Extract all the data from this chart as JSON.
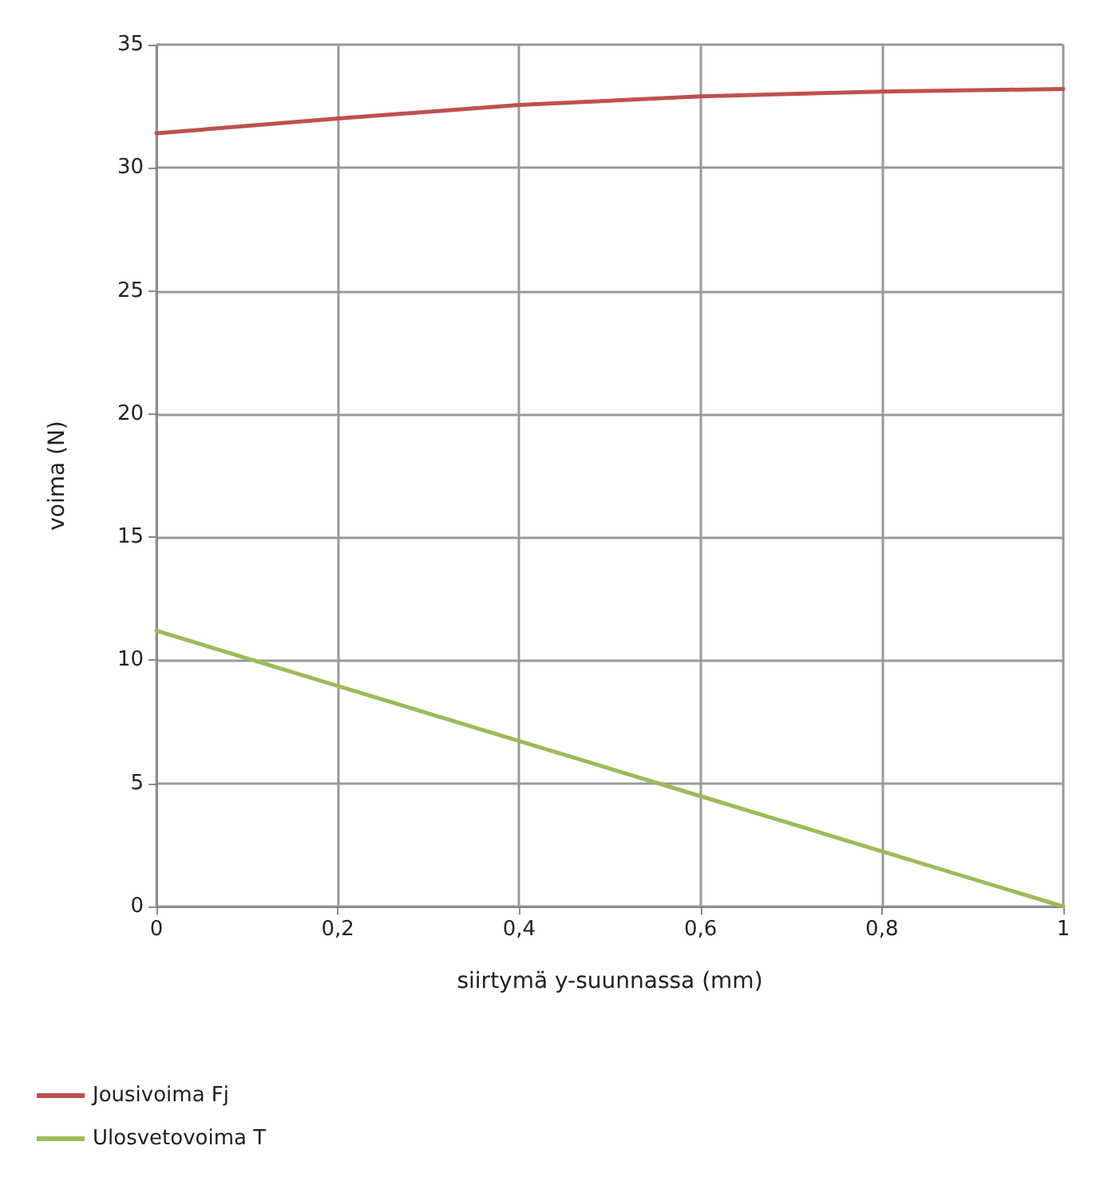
{
  "chart_data": {
    "type": "line",
    "xlabel": "siirtymä y-suunnassa (mm)",
    "ylabel": "voima (N)",
    "x": [
      0,
      0.2,
      0.4,
      0.6,
      0.8,
      1
    ],
    "series": [
      {
        "name": "Jousivoima Fj",
        "color": "#c0504d",
        "values": [
          31.4,
          32.0,
          32.55,
          32.9,
          33.1,
          33.2
        ]
      },
      {
        "name": "Ulosvetovoima T",
        "color": "#9bbb59",
        "values": [
          11.2,
          8.96,
          6.72,
          4.48,
          2.24,
          0
        ]
      }
    ],
    "xlim": [
      0,
      1
    ],
    "xticks": [
      0,
      {
        "value": 0.2,
        "label": "0,2"
      },
      {
        "value": 0.4,
        "label": "0,4"
      },
      {
        "value": 0.6,
        "label": "0,6"
      },
      {
        "value": 0.8,
        "label": "0,8"
      },
      1
    ],
    "ylim": [
      0,
      35
    ],
    "yticks": [
      0,
      5,
      10,
      15,
      20,
      25,
      30,
      35
    ],
    "grid": true,
    "legend": "bottom left",
    "marker": "none",
    "line_style": "solid"
  }
}
